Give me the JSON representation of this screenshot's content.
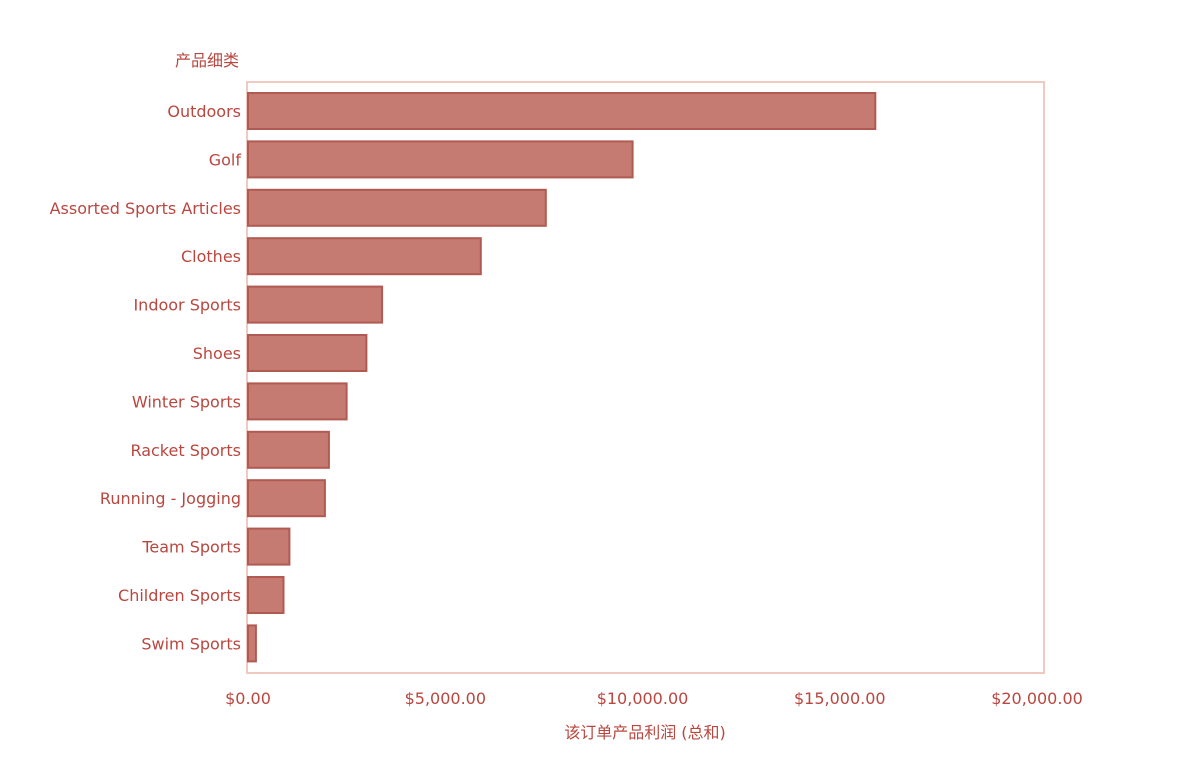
{
  "chart_data": {
    "type": "bar",
    "orientation": "horizontal",
    "y_axis_title": "产品细类",
    "x_axis_title": "该订单产品利润 (总和)",
    "categories": [
      "Outdoors",
      "Golf",
      "Assorted Sports Articles",
      "Clothes",
      "Indoor Sports",
      "Shoes",
      "Winter Sports",
      "Racket Sports",
      "Running - Jogging",
      "Team Sports",
      "Children Sports",
      "Swim Sports"
    ],
    "values": [
      15900,
      9750,
      7550,
      5900,
      3400,
      3000,
      2500,
      2050,
      1950,
      1050,
      900,
      200
    ],
    "xlim": [
      0,
      20000
    ],
    "x_ticks": [
      0,
      5000,
      10000,
      15000,
      20000
    ],
    "x_tick_labels": [
      "$0.00",
      "$5,000.00",
      "$10,000.00",
      "$15,000.00",
      "$20,000.00"
    ],
    "grid": false,
    "legend": "none",
    "colors": {
      "bar_fill": "#c67b72",
      "bar_stroke": "#b05a52",
      "text": "#b9473f",
      "frame": "#f0c9c0"
    }
  }
}
